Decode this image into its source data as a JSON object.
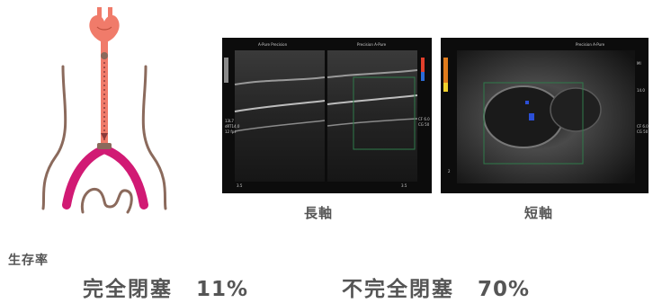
{
  "captions": {
    "long_axis": "長軸",
    "short_axis": "短軸"
  },
  "survival_rate_label": "生存率",
  "stats": {
    "complete": {
      "label": "完全閉塞",
      "value": "11%"
    },
    "incomplete": {
      "label": "不完全閉塞",
      "value": "70%"
    }
  },
  "colors": {
    "accent": "#d11a74",
    "heart": "#f07b6a",
    "outline": "#8b6a5c"
  }
}
